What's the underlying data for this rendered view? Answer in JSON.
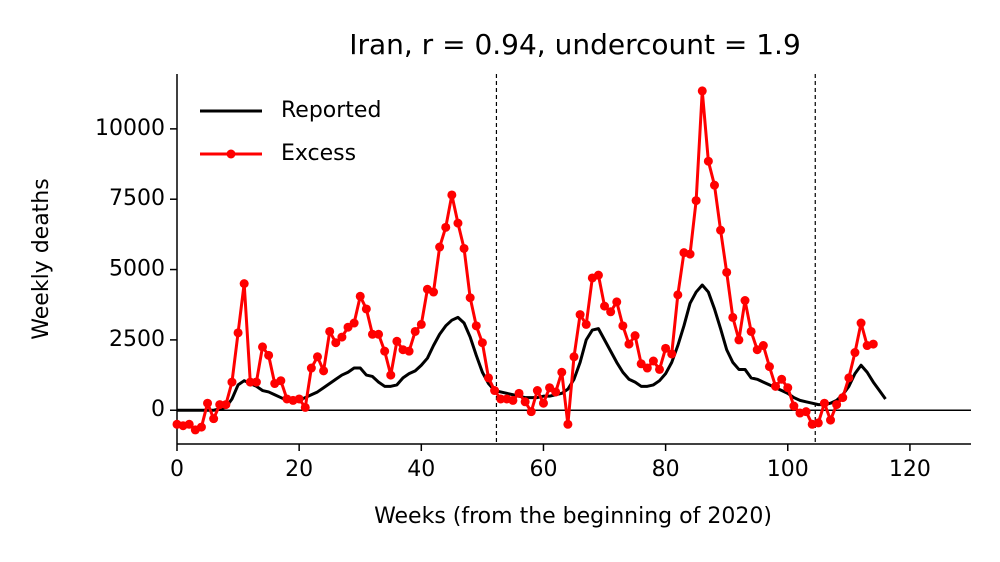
{
  "chart_data": {
    "type": "line",
    "title": "Iran, r = 0.94, undercount = 1.9",
    "xlabel": "Weeks (from the beginning of 2020)",
    "ylabel": "Weekly deaths",
    "x": [
      0,
      1,
      2,
      3,
      4,
      5,
      6,
      7,
      8,
      9,
      10,
      11,
      12,
      13,
      14,
      15,
      16,
      17,
      18,
      19,
      20,
      21,
      22,
      23,
      24,
      25,
      26,
      27,
      28,
      29,
      30,
      31,
      32,
      33,
      34,
      35,
      36,
      37,
      38,
      39,
      40,
      41,
      42,
      43,
      44,
      45,
      46,
      47,
      48,
      49,
      50,
      51,
      52,
      53,
      54,
      55,
      56,
      57,
      58,
      59,
      60,
      61,
      62,
      63,
      64,
      65,
      66,
      67,
      68,
      69,
      70,
      71,
      72,
      73,
      74,
      75,
      76,
      77,
      78,
      79,
      80,
      81,
      82,
      83,
      84,
      85,
      86,
      87,
      88,
      89,
      90,
      91,
      92,
      93,
      94,
      95,
      96,
      97,
      98,
      99,
      100,
      101,
      102,
      103,
      104,
      105,
      106,
      107,
      108,
      109,
      110,
      111,
      112,
      113,
      114,
      115,
      116
    ],
    "series": [
      {
        "name": "Reported",
        "color": "#000000",
        "markers": false,
        "values": [
          0,
          0,
          0,
          0,
          0,
          0,
          0,
          50,
          100,
          400,
          900,
          1050,
          950,
          850,
          700,
          650,
          550,
          450,
          350,
          300,
          350,
          450,
          550,
          650,
          800,
          950,
          1100,
          1250,
          1350,
          1500,
          1500,
          1250,
          1200,
          1000,
          850,
          850,
          900,
          1150,
          1300,
          1400,
          1600,
          1850,
          2300,
          2700,
          3000,
          3200,
          3300,
          3100,
          2600,
          1950,
          1350,
          950,
          700,
          650,
          600,
          550,
          500,
          450,
          450,
          450,
          500,
          500,
          550,
          600,
          750,
          1100,
          1700,
          2500,
          2850,
          2900,
          2500,
          2100,
          1700,
          1350,
          1100,
          1000,
          850,
          850,
          900,
          1050,
          1300,
          1700,
          2300,
          3000,
          3800,
          4200,
          4450,
          4200,
          3600,
          2900,
          2150,
          1700,
          1450,
          1450,
          1150,
          1100,
          1000,
          900,
          800,
          700,
          600,
          450,
          350,
          300,
          250,
          200,
          200,
          250,
          350,
          550,
          850,
          1300,
          1600,
          1350,
          1000,
          700,
          400
        ]
      },
      {
        "name": "Excess",
        "color": "#ff0000",
        "markers": true,
        "values": [
          -500,
          -550,
          -500,
          -700,
          -600,
          250,
          -300,
          200,
          200,
          1000,
          2750,
          4500,
          1000,
          1000,
          2250,
          1950,
          950,
          1050,
          400,
          350,
          400,
          100,
          1500,
          1900,
          1400,
          2800,
          2400,
          2600,
          2950,
          3100,
          4050,
          3600,
          2700,
          2700,
          2100,
          1250,
          2450,
          2150,
          2100,
          2800,
          3050,
          4300,
          4200,
          5800,
          6500,
          7650,
          6650,
          5750,
          4000,
          3000,
          2400,
          1150,
          700,
          400,
          400,
          350,
          600,
          300,
          -50,
          700,
          250,
          800,
          650,
          1350,
          -500,
          1900,
          3400,
          3050,
          4700,
          4800,
          3700,
          3500,
          3850,
          3000,
          2350,
          2650,
          1650,
          1500,
          1750,
          1450,
          2200,
          2000,
          4100,
          5600,
          5550,
          7450,
          11350,
          8850,
          8000,
          6400,
          4900,
          3300,
          2500,
          3900,
          2800,
          2150,
          2300,
          1550,
          850,
          1100,
          800,
          150,
          -100,
          -50,
          -500,
          -450,
          250,
          -350,
          200,
          450,
          1150,
          2050,
          3100,
          2300,
          2350,
          null,
          null
        ]
      }
    ],
    "xlim": [
      0,
      130
    ],
    "ylim": [
      -1200,
      11950
    ],
    "xticks": [
      0,
      20,
      40,
      60,
      80,
      100,
      120
    ],
    "yticks": [
      0,
      2500,
      5000,
      7500,
      10000
    ],
    "vlines": [
      52.3,
      104.5
    ],
    "hline": 0,
    "legend": "upper-left",
    "grid": false
  }
}
